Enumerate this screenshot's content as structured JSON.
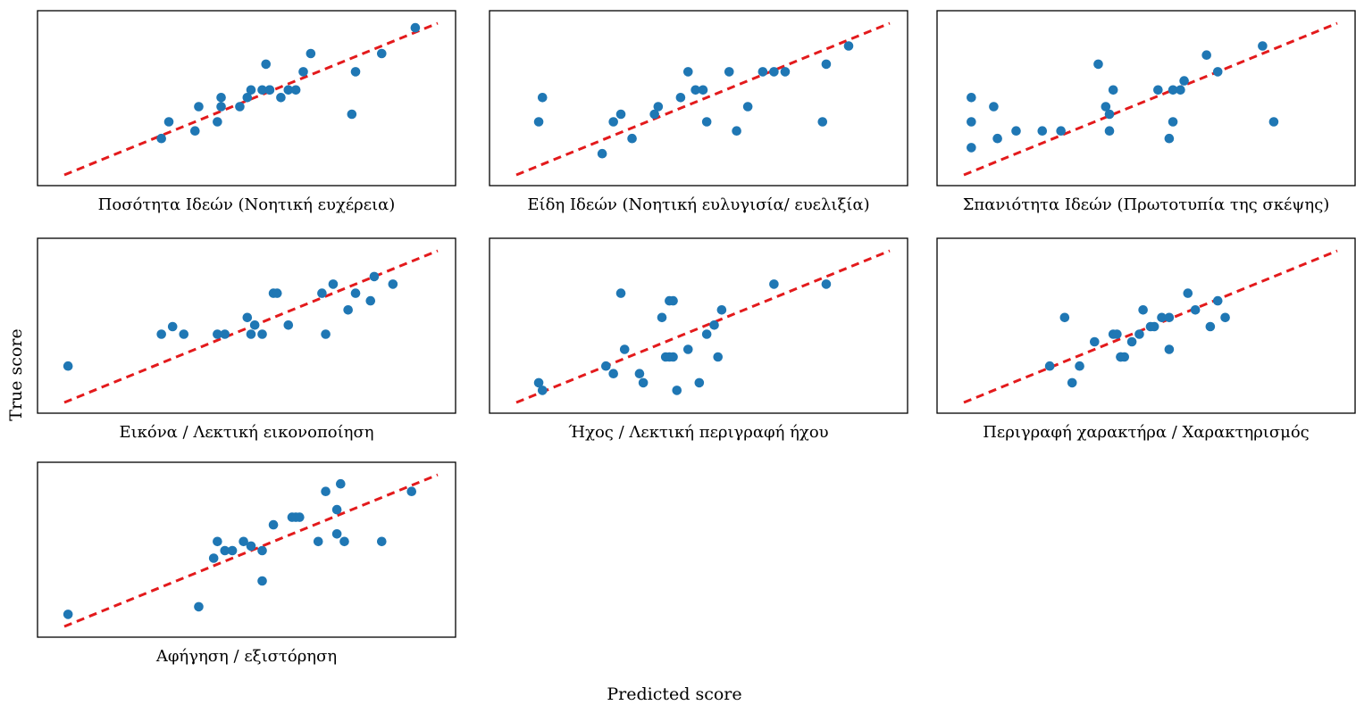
{
  "figure": {
    "xlabel": "Predicted score",
    "ylabel": "True score",
    "point_color": "#1f77b4",
    "line_color": "#e31a1c"
  },
  "chart_data": [
    {
      "type": "scatter",
      "title": "Ποσότητα Ιδεών (Νοητική ευχέρεια)",
      "xlim": [
        0,
        10
      ],
      "ylim": [
        0,
        10
      ],
      "grid": false,
      "reference_line": [
        [
          0,
          0
        ],
        [
          10,
          10
        ]
      ],
      "x": [
        2.6,
        2.8,
        3.5,
        3.6,
        4.1,
        4.2,
        4.2,
        4.7,
        4.9,
        5.0,
        5.3,
        5.4,
        5.5,
        5.5,
        5.8,
        6.0,
        6.2,
        6.4,
        6.6,
        7.7,
        7.8,
        8.5,
        9.4
      ],
      "y": [
        2.4,
        3.5,
        2.9,
        4.5,
        3.5,
        4.5,
        5.1,
        4.5,
        5.1,
        5.6,
        5.6,
        7.3,
        5.6,
        5.6,
        5.1,
        5.6,
        5.6,
        6.8,
        8.0,
        4.0,
        6.8,
        8.0,
        9.7
      ]
    },
    {
      "type": "scatter",
      "title": "Είδη Ιδεών (Νοητική ευλυγισία/ ευελιξία)",
      "xlim": [
        0,
        10
      ],
      "ylim": [
        0,
        10
      ],
      "grid": false,
      "reference_line": [
        [
          0,
          0
        ],
        [
          10,
          10
        ]
      ],
      "x": [
        0.6,
        0.7,
        2.3,
        2.6,
        2.8,
        3.1,
        3.7,
        3.8,
        4.4,
        4.6,
        4.8,
        5.0,
        5.1,
        5.7,
        5.9,
        6.2,
        6.6,
        6.9,
        7.2,
        8.2,
        8.3,
        8.9
      ],
      "y": [
        3.5,
        5.1,
        1.4,
        3.5,
        4.0,
        2.4,
        4.0,
        4.5,
        5.1,
        6.8,
        5.6,
        5.6,
        3.5,
        6.8,
        2.9,
        4.5,
        6.8,
        6.8,
        6.8,
        3.5,
        7.3,
        8.5
      ]
    },
    {
      "type": "scatter",
      "title": "Σπανιότητα Ιδεών (Πρωτοτυπία της σκέψης)",
      "xlim": [
        0,
        10
      ],
      "ylim": [
        0,
        10
      ],
      "grid": false,
      "reference_line": [
        [
          0,
          0
        ],
        [
          10,
          10
        ]
      ],
      "x": [
        0.2,
        0.2,
        0.2,
        0.8,
        0.9,
        1.4,
        2.1,
        2.6,
        3.6,
        3.8,
        3.9,
        3.9,
        4.0,
        5.2,
        5.5,
        5.6,
        5.6,
        5.8,
        5.9,
        6.5,
        6.8,
        8.0,
        8.3
      ],
      "y": [
        1.8,
        3.5,
        5.1,
        4.5,
        2.4,
        2.9,
        2.9,
        2.9,
        7.3,
        4.5,
        4.0,
        2.9,
        5.6,
        5.6,
        2.4,
        3.5,
        5.6,
        5.6,
        6.2,
        7.9,
        6.8,
        8.5,
        3.5
      ]
    },
    {
      "type": "scatter",
      "title": "Εικόνα / Λεκτική εικονοποίηση",
      "xlim": [
        0,
        10
      ],
      "ylim": [
        0,
        10
      ],
      "grid": false,
      "reference_line": [
        [
          0,
          0
        ],
        [
          10,
          10
        ]
      ],
      "x": [
        0.1,
        2.6,
        2.9,
        3.2,
        4.1,
        4.3,
        4.9,
        5.0,
        5.1,
        5.3,
        5.6,
        5.7,
        6.0,
        6.9,
        7.0,
        7.2,
        7.6,
        7.8,
        8.2,
        8.3,
        8.8
      ],
      "y": [
        2.4,
        4.5,
        5.0,
        4.5,
        4.5,
        4.5,
        5.6,
        4.5,
        5.1,
        4.5,
        7.2,
        7.2,
        5.1,
        7.2,
        4.5,
        7.8,
        6.1,
        7.2,
        6.7,
        8.3,
        7.8
      ]
    },
    {
      "type": "scatter",
      "title": "Ήχος / Λεκτική περιγραφή ήχου",
      "xlim": [
        0,
        10
      ],
      "ylim": [
        0,
        10
      ],
      "grid": false,
      "reference_line": [
        [
          0,
          0
        ],
        [
          10,
          10
        ]
      ],
      "x": [
        0.6,
        0.7,
        2.4,
        2.6,
        2.8,
        2.9,
        3.3,
        3.4,
        3.9,
        4.0,
        4.1,
        4.1,
        4.2,
        4.2,
        4.3,
        4.6,
        4.9,
        5.1,
        5.3,
        5.4,
        5.5,
        6.9,
        8.3
      ],
      "y": [
        1.3,
        0.8,
        2.4,
        1.9,
        7.2,
        3.5,
        1.9,
        1.3,
        5.6,
        3.0,
        6.7,
        3.0,
        6.7,
        3.0,
        0.8,
        3.5,
        1.3,
        4.5,
        5.1,
        3.0,
        6.1,
        7.8,
        7.8
      ]
    },
    {
      "type": "scatter",
      "title": "Περιγραφή χαρακτήρα / Χαρακτηρισμός",
      "xlim": [
        0,
        10
      ],
      "ylim": [
        0,
        10
      ],
      "grid": false,
      "reference_line": [
        [
          0,
          0
        ],
        [
          10,
          10
        ]
      ],
      "x": [
        2.3,
        2.7,
        2.9,
        3.1,
        3.5,
        4.0,
        4.1,
        4.2,
        4.2,
        4.3,
        4.5,
        4.7,
        4.8,
        5.0,
        5.1,
        5.3,
        5.5,
        5.5,
        6.0,
        6.2,
        6.6,
        6.8,
        7.0
      ],
      "y": [
        2.4,
        5.6,
        1.3,
        2.4,
        4.0,
        4.5,
        4.5,
        3.0,
        3.0,
        3.0,
        4.0,
        4.5,
        6.1,
        5.0,
        5.0,
        5.6,
        3.5,
        5.6,
        7.2,
        6.1,
        5.0,
        6.7,
        5.6
      ]
    },
    {
      "type": "scatter",
      "title": "Αφήγηση / εξιστόρηση",
      "xlim": [
        0,
        10
      ],
      "ylim": [
        0,
        10
      ],
      "grid": false,
      "reference_line": [
        [
          0,
          0
        ],
        [
          10,
          10
        ]
      ],
      "x": [
        0.1,
        3.6,
        4.0,
        4.1,
        4.3,
        4.5,
        4.8,
        5.0,
        5.3,
        5.3,
        5.6,
        6.1,
        6.2,
        6.3,
        6.8,
        7.0,
        7.3,
        7.3,
        7.4,
        7.5,
        8.5,
        9.3
      ],
      "y": [
        0.8,
        1.3,
        4.5,
        5.6,
        5.0,
        5.0,
        5.6,
        5.3,
        3.0,
        5.0,
        6.7,
        7.2,
        7.2,
        7.2,
        5.6,
        8.9,
        6.1,
        7.7,
        9.4,
        5.6,
        5.6,
        8.9
      ]
    }
  ]
}
